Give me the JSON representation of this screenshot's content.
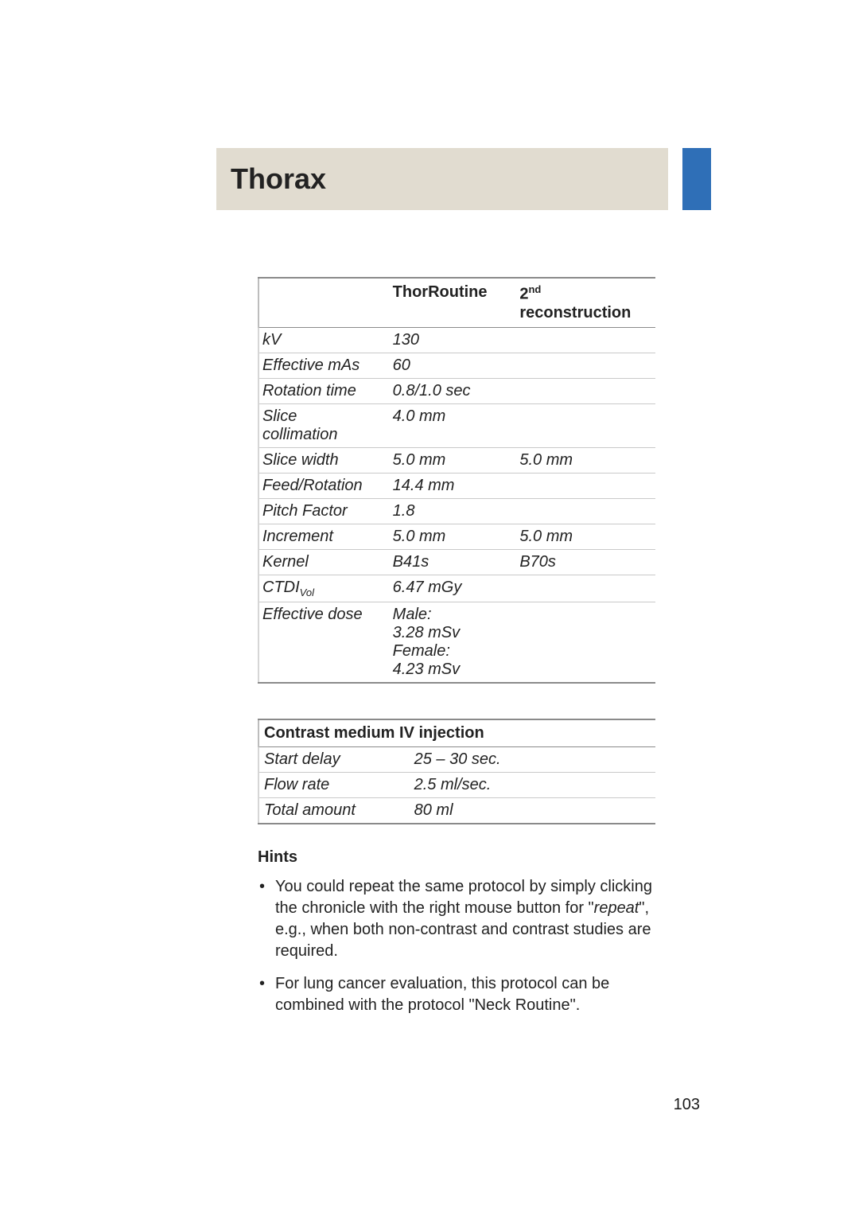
{
  "header": {
    "title": "Thorax",
    "title_bg": "#e1dcd0",
    "accent_bg": "#2f6fb7"
  },
  "protocol_table": {
    "columns": {
      "param": "",
      "routine": "ThorRoutine",
      "recon_prefix": "2",
      "recon_sup": "nd",
      "recon_line2": "reconstruction"
    },
    "rows": [
      {
        "param": "kV",
        "routine": "130",
        "recon": ""
      },
      {
        "param": "Effective mAs",
        "routine": "60",
        "recon": ""
      },
      {
        "param": "Rotation time",
        "routine": "0.8/1.0 sec",
        "recon": ""
      },
      {
        "param": "Slice\ncollimation",
        "routine": "4.0 mm",
        "recon": ""
      },
      {
        "param": "Slice width",
        "routine": "5.0 mm",
        "recon": "5.0 mm"
      },
      {
        "param": "Feed/Rotation",
        "routine": "14.4 mm",
        "recon": ""
      },
      {
        "param": "Pitch Factor",
        "routine": "1.8",
        "recon": ""
      },
      {
        "param": "Increment",
        "routine": "5.0 mm",
        "recon": "5.0 mm"
      },
      {
        "param": "Kernel",
        "routine": "B41s",
        "recon": "B70s"
      },
      {
        "param_prefix": "CTDI",
        "param_sub": "Vol",
        "routine": "6.47 mGy",
        "recon": ""
      },
      {
        "param": "Effective dose",
        "routine": "Male:\n3.28 mSv\nFemale:\n4.23 mSv",
        "recon": ""
      }
    ]
  },
  "contrast_table": {
    "title": "Contrast medium IV injection",
    "rows": [
      {
        "label": "Start delay",
        "value": "25 – 30 sec."
      },
      {
        "label": "Flow rate",
        "value": "2.5 ml/sec."
      },
      {
        "label": "Total amount",
        "value": "80 ml"
      }
    ]
  },
  "hints": {
    "heading": "Hints",
    "items": [
      {
        "pre": "You could repeat the same protocol by simply clicking the chronicle with the right mouse button for \"",
        "ital": "repeat",
        "post": "\", e.g., when both non-contrast and contrast studies are required."
      },
      {
        "pre": "For lung cancer evaluation, this protocol can be combined with the protocol \"Neck Routine\".",
        "ital": "",
        "post": ""
      }
    ]
  },
  "page_number": "103"
}
